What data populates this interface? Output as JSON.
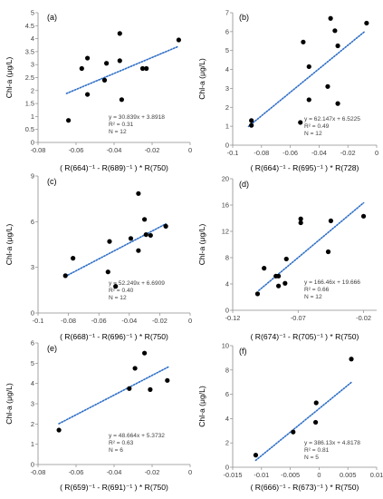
{
  "chart_data": [
    {
      "type": "scatter",
      "panel_label": "(a)",
      "xlabel": "( R(664)⁻¹ - R(689)⁻¹ ) * R(750)",
      "ylabel": "Chl-a (μg/L)",
      "xlim": [
        -0.08,
        0
      ],
      "ylim": [
        0,
        5
      ],
      "xticks": [
        -0.08,
        -0.06,
        -0.04,
        -0.02,
        0
      ],
      "yticks": [
        0,
        0.5,
        1,
        1.5,
        2,
        2.5,
        3,
        3.5,
        4,
        4.5,
        5
      ],
      "x_tick_labels": [
        "-0.08",
        "-0.06",
        "-0.04",
        "-0.02",
        "0"
      ],
      "y_tick_labels": [
        "0",
        "0.5",
        "1",
        "1.5",
        "2",
        "2.5",
        "3",
        "3.5",
        "4",
        "4.5",
        "5"
      ],
      "points": [
        [
          -0.064,
          0.85
        ],
        [
          -0.057,
          2.85
        ],
        [
          -0.054,
          3.25
        ],
        [
          -0.054,
          1.85
        ],
        [
          -0.045,
          2.4
        ],
        [
          -0.044,
          3.05
        ],
        [
          -0.037,
          4.2
        ],
        [
          -0.037,
          3.15
        ],
        [
          -0.036,
          1.65
        ],
        [
          -0.025,
          2.85
        ],
        [
          -0.023,
          2.85
        ],
        [
          -0.006,
          3.95
        ]
      ],
      "trendline": {
        "slope": 30.839,
        "intercept": 3.8918,
        "x_range": [
          -0.065,
          -0.006
        ]
      },
      "equation": "y = 30.839x + 3.8918",
      "r2": "R² = 0.31",
      "n": "N = 12"
    },
    {
      "type": "scatter",
      "panel_label": "(b)",
      "xlabel": "( R(664)⁻¹ - R(695)⁻¹ ) * R(728)",
      "ylabel": "Chl-a (μg/L)",
      "xlim": [
        -0.1,
        0
      ],
      "ylim": [
        0,
        7
      ],
      "xticks": [
        -0.1,
        -0.08,
        -0.06,
        -0.04,
        -0.02,
        0
      ],
      "yticks": [
        0,
        1,
        2,
        3,
        4,
        5,
        6,
        7
      ],
      "x_tick_labels": [
        "-0.1",
        "-0.08",
        "-0.06",
        "-0.04",
        "-0.02",
        "0"
      ],
      "y_tick_labels": [
        "0",
        "1",
        "2",
        "3",
        "4",
        "5",
        "6",
        "7"
      ],
      "points": [
        [
          -0.087,
          1.3
        ],
        [
          -0.087,
          1.05
        ],
        [
          -0.053,
          1.2
        ],
        [
          -0.051,
          5.45
        ],
        [
          -0.047,
          4.15
        ],
        [
          -0.047,
          2.4
        ],
        [
          -0.034,
          3.1
        ],
        [
          -0.032,
          6.7
        ],
        [
          -0.029,
          6.05
        ],
        [
          -0.027,
          5.25
        ],
        [
          -0.027,
          2.2
        ],
        [
          -0.007,
          6.45
        ]
      ],
      "trendline": {
        "slope": 62.147,
        "intercept": 6.5225,
        "x_range": [
          -0.089,
          -0.008
        ]
      },
      "equation": "y = 62.147x + 6.5225",
      "r2": "R² = 0.49",
      "n": "N = 12"
    },
    {
      "type": "scatter",
      "panel_label": "(c)",
      "xlabel": "( R(668)⁻¹ - R(696)⁻¹ ) * R(750)",
      "ylabel": "Chl-a (μg/L)",
      "xlim": [
        -0.1,
        0
      ],
      "ylim": [
        0,
        9
      ],
      "xticks": [
        -0.1,
        -0.08,
        -0.06,
        -0.04,
        -0.02,
        0
      ],
      "yticks": [
        0,
        3,
        6,
        9
      ],
      "x_tick_labels": [
        "-0.1",
        "-0.08",
        "-0.06",
        "-0.04",
        "-0.02",
        "0"
      ],
      "y_tick_labels": [
        "0",
        "3",
        "6",
        "9"
      ],
      "points": [
        [
          -0.082,
          2.45
        ],
        [
          -0.077,
          3.6
        ],
        [
          -0.054,
          2.7
        ],
        [
          -0.053,
          4.7
        ],
        [
          -0.049,
          1.75
        ],
        [
          -0.039,
          4.9
        ],
        [
          -0.034,
          7.85
        ],
        [
          -0.034,
          4.1
        ],
        [
          -0.03,
          6.15
        ],
        [
          -0.029,
          5.15
        ],
        [
          -0.026,
          5.1
        ],
        [
          -0.016,
          5.7
        ]
      ],
      "trendline": {
        "slope": 52.249,
        "intercept": 6.6909,
        "x_range": [
          -0.082,
          -0.016
        ]
      },
      "equation": "y = 52.249x + 6.6909",
      "r2": "R² = 0.40",
      "n": "N = 12"
    },
    {
      "type": "scatter",
      "panel_label": "(d)",
      "xlabel": "( R(674)⁻¹ - R(705)⁻¹ ) * R(750)",
      "ylabel": "Chl-a (μg/L)",
      "xlim": [
        -0.12,
        -0.01
      ],
      "ylim": [
        0,
        20
      ],
      "xticks": [
        -0.12,
        -0.07,
        -0.02
      ],
      "yticks": [
        0,
        4,
        8,
        12,
        16,
        20
      ],
      "x_tick_labels": [
        "-0.12",
        "-0.07",
        "-0.02"
      ],
      "y_tick_labels": [
        "0",
        "4",
        "8",
        "12",
        "16",
        "20"
      ],
      "points": [
        [
          -0.101,
          2.5
        ],
        [
          -0.096,
          6.4
        ],
        [
          -0.087,
          5.2
        ],
        [
          -0.085,
          5.2
        ],
        [
          -0.085,
          3.7
        ],
        [
          -0.08,
          4.1
        ],
        [
          -0.079,
          7.8
        ],
        [
          -0.068,
          13.9
        ],
        [
          -0.068,
          13.3
        ],
        [
          -0.047,
          8.9
        ],
        [
          -0.045,
          13.6
        ],
        [
          -0.02,
          14.3
        ]
      ],
      "trendline": {
        "slope": 166.46,
        "intercept": 19.666,
        "x_range": [
          -0.1,
          -0.02
        ]
      },
      "equation": "y = 166.46x + 19.666",
      "r2": "R² = 0.66",
      "n": "N = 12"
    },
    {
      "type": "scatter",
      "panel_label": "(e)",
      "xlabel": "( R(659)⁻¹ - R(691)⁻¹ ) * R(750)",
      "ylabel": "Chl-a (μg/L)",
      "xlim": [
        -0.08,
        0
      ],
      "ylim": [
        0,
        6
      ],
      "xticks": [
        -0.08,
        -0.06,
        -0.04,
        -0.02,
        0
      ],
      "yticks": [
        0,
        1,
        2,
        3,
        4,
        5,
        6
      ],
      "x_tick_labels": [
        "-0.08",
        "-0.06",
        "-0.04",
        "-0.02",
        "0"
      ],
      "y_tick_labels": [
        "0",
        "1",
        "2",
        "3",
        "4",
        "5",
        "6"
      ],
      "points": [
        [
          -0.069,
          1.7
        ],
        [
          -0.032,
          3.75
        ],
        [
          -0.029,
          4.75
        ],
        [
          -0.024,
          5.5
        ],
        [
          -0.021,
          3.7
        ],
        [
          -0.012,
          4.15
        ]
      ],
      "trendline": {
        "slope": 48.664,
        "intercept": 5.3732,
        "x_range": [
          -0.069,
          -0.011
        ]
      },
      "equation": "y = 48.664x + 5.3732",
      "r2": "R² = 0.63",
      "n": "N = 6"
    },
    {
      "type": "scatter",
      "panel_label": "(f)",
      "xlabel": "( R(666)⁻¹ - R(673)⁻¹ ) * R(750)",
      "ylabel": "Chl-a (μg/L)",
      "xlim": [
        -0.015,
        0.01
      ],
      "ylim": [
        0,
        10
      ],
      "xticks": [
        -0.015,
        -0.01,
        -0.005,
        0,
        0.005,
        0.01
      ],
      "yticks": [
        0,
        2,
        4,
        6,
        8,
        10
      ],
      "x_tick_labels": [
        "-0.015",
        "-0.01",
        "-0.005",
        "0",
        "0.005",
        "0.01"
      ],
      "y_tick_labels": [
        "0",
        "2",
        "4",
        "6",
        "8",
        "10"
      ],
      "points": [
        [
          -0.011,
          1.0
        ],
        [
          -0.0045,
          2.9
        ],
        [
          -0.0005,
          5.3
        ],
        [
          -0.0006,
          3.7
        ],
        [
          0.0056,
          8.9
        ]
      ],
      "trendline": {
        "slope": 386.13,
        "intercept": 4.8178,
        "x_range": [
          -0.011,
          0.0056
        ]
      },
      "equation": "y = 386.13x + 4.8178",
      "r2": "R² = 0.81",
      "n": "N = 5"
    }
  ]
}
